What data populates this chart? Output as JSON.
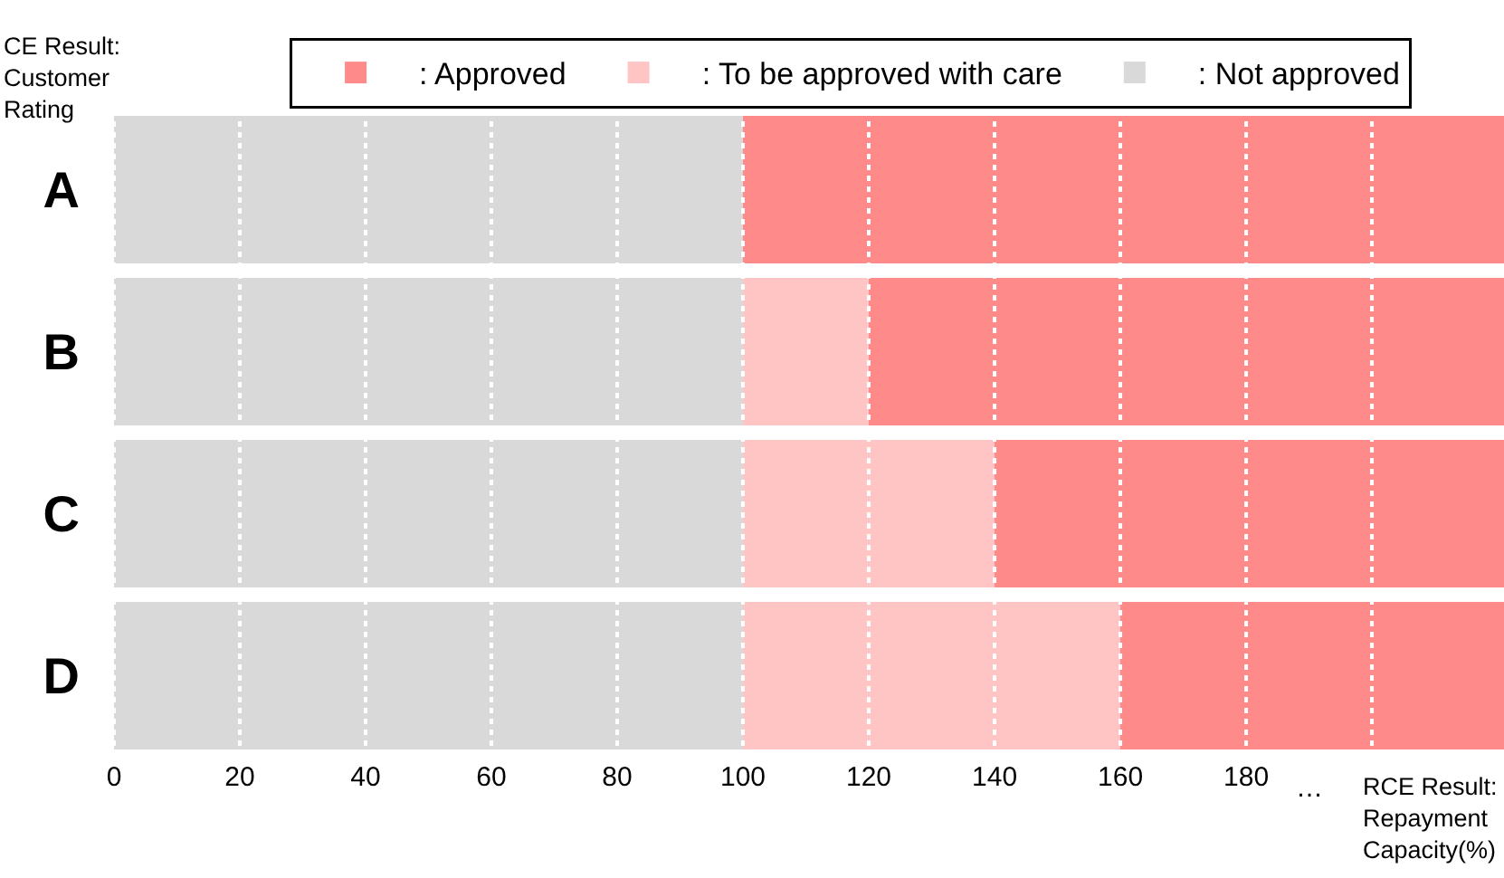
{
  "chart_data": {
    "type": "bar",
    "orientation": "horizontal",
    "stacked": true,
    "xlabel": "RCE Result: Repayment Capacity(%)",
    "ylabel": "CE Result: Customer Rating",
    "categories": [
      "A",
      "B",
      "C",
      "D"
    ],
    "series": [
      {
        "name": ": Not approved",
        "color": "#d9d9d9",
        "values": [
          100,
          100,
          100,
          100
        ]
      },
      {
        "name": ": To be approved with care",
        "color": "#ffc5c5",
        "values": [
          0,
          20,
          40,
          60
        ]
      },
      {
        "name": ": Approved",
        "color": "#ff8a8a",
        "values": [
          121,
          101,
          81,
          61
        ]
      }
    ],
    "xlim": [
      0,
      221
    ],
    "xticks": [
      0,
      20,
      40,
      60,
      80,
      100,
      120,
      140,
      160,
      180,
      {
        "value": 200,
        "label": null
      }
    ],
    "annotations": [
      "…"
    ],
    "grid": "x",
    "legend": "top"
  }
}
